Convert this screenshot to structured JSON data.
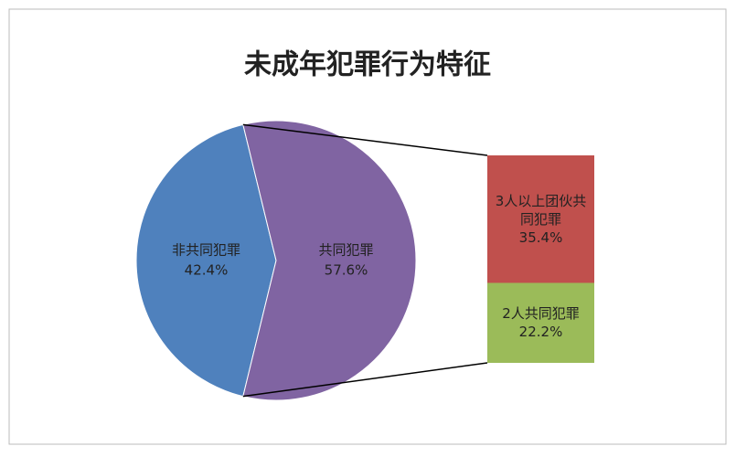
{
  "chart_data": {
    "type": "bar-of-pie",
    "title": "未成年犯罪行为特征",
    "pie": {
      "categories": [
        "非共同犯罪",
        "共同犯罪"
      ],
      "values": [
        42.4,
        57.6
      ],
      "value_labels": [
        "42.4%",
        "57.6%"
      ],
      "colors": [
        "#4f81bd",
        "#8064a2"
      ]
    },
    "bar": {
      "categories": [
        "3人以上团伙共同犯罪",
        "2人共同犯罪"
      ],
      "values": [
        35.4,
        22.2
      ],
      "value_labels": [
        "35.4%",
        "22.2%"
      ],
      "colors": [
        "#c0504d",
        "#9bbb59"
      ]
    }
  }
}
